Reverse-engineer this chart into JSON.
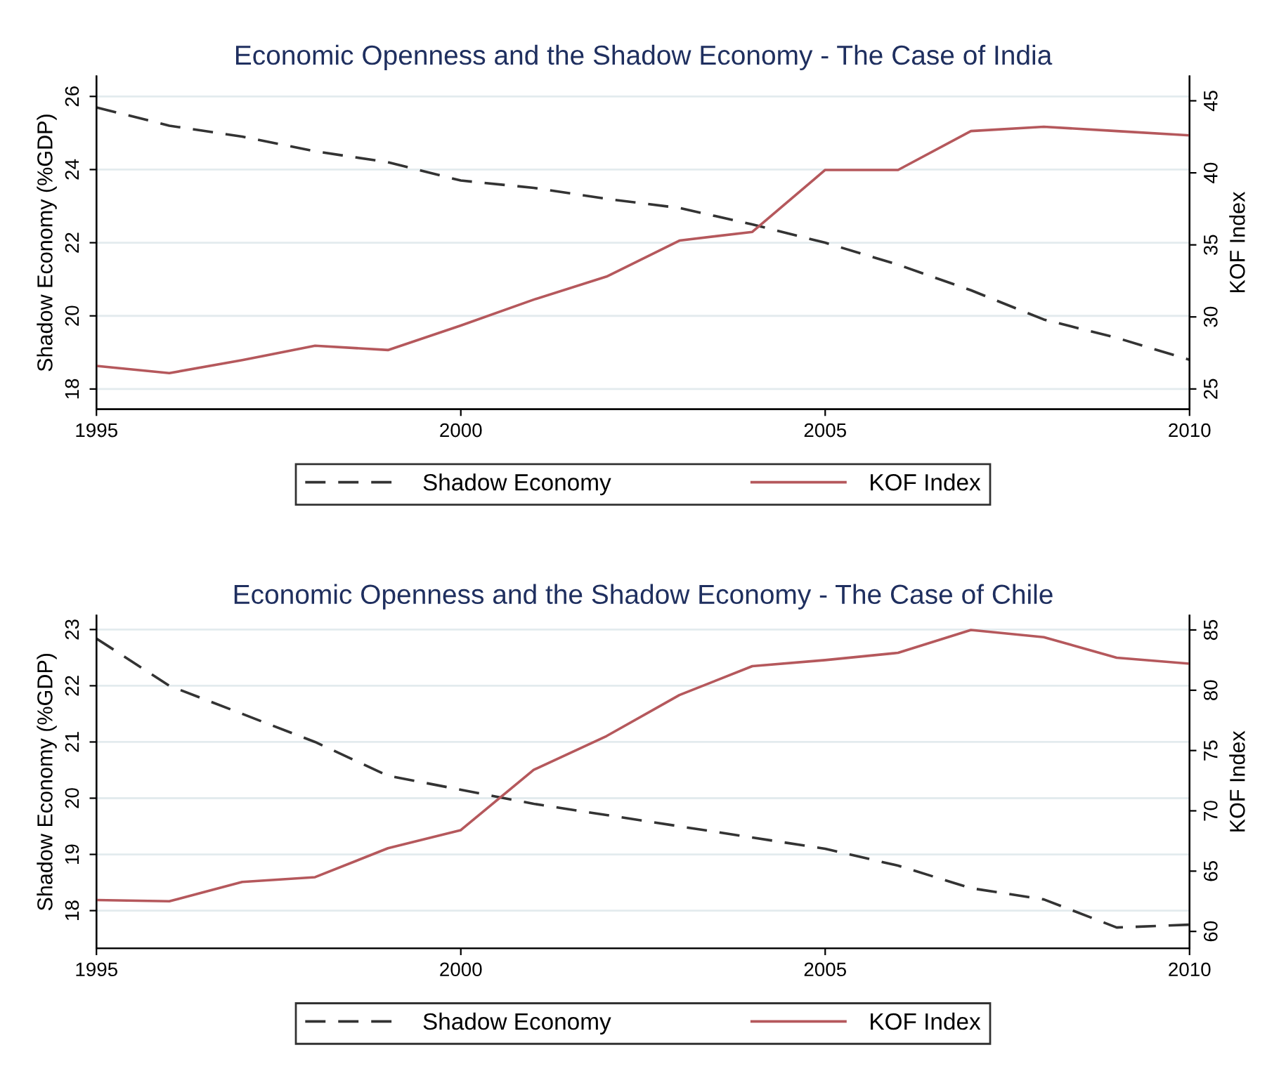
{
  "chart_data": [
    {
      "type": "line",
      "title": "Economic Openness and the Shadow Economy - The Case of India",
      "ylabel": "Shadow Economy (%GDP)",
      "y2label": "KOF Index",
      "x": [
        1995,
        1996,
        1997,
        1998,
        1999,
        2000,
        2001,
        2002,
        2003,
        2004,
        2005,
        2006,
        2007,
        2008,
        2009,
        2010
      ],
      "xlim": [
        1995,
        2010
      ],
      "xticks": [
        1995,
        2000,
        2005,
        2010
      ],
      "ylim": [
        17.45,
        26.55
      ],
      "yticks": [
        18,
        20,
        22,
        24,
        26
      ],
      "y2lim": [
        23.6,
        46.7
      ],
      "y2ticks": [
        25,
        30,
        35,
        40,
        45
      ],
      "series": [
        {
          "name": "Shadow Economy",
          "color": "#333333",
          "line_style": "dashed",
          "values": [
            25.7,
            25.2,
            24.9,
            24.5,
            24.2,
            23.7,
            23.5,
            23.2,
            22.95,
            22.5,
            22.0,
            21.4,
            20.7,
            19.9,
            19.4,
            18.8
          ]
        },
        {
          "name": "KOF Index",
          "color": "#b5585c",
          "line_style": "solid",
          "axis": "y2",
          "values": [
            26.6,
            26.1,
            27.0,
            28.0,
            27.7,
            29.4,
            31.2,
            32.8,
            35.3,
            35.9,
            40.2,
            40.2,
            42.9,
            43.2,
            42.9,
            42.6
          ]
        }
      ],
      "grid": "y",
      "legend": "bottom",
      "marker": "none"
    },
    {
      "type": "line",
      "title": "Economic Openness and the Shadow Economy - The Case of Chile",
      "ylabel": "Shadow Economy (%GDP)",
      "y2label": "KOF Index",
      "x": [
        1995,
        1996,
        1997,
        1998,
        1999,
        2000,
        2001,
        2002,
        2003,
        2004,
        2005,
        2006,
        2007,
        2008,
        2009,
        2010
      ],
      "xlim": [
        1995,
        2010
      ],
      "xticks": [
        1995,
        2000,
        2005,
        2010
      ],
      "ylim": [
        17.33,
        23.25
      ],
      "yticks": [
        18,
        19,
        20,
        21,
        22,
        23
      ],
      "y2lim": [
        58.6,
        86.2
      ],
      "y2ticks": [
        60,
        65,
        70,
        75,
        80,
        85
      ],
      "series": [
        {
          "name": "Shadow Economy",
          "color": "#333333",
          "line_style": "dashed",
          "values": [
            22.84,
            22.0,
            21.5,
            21.0,
            20.4,
            20.15,
            19.9,
            19.7,
            19.5,
            19.3,
            19.1,
            18.8,
            18.4,
            18.2,
            17.7,
            17.75
          ]
        },
        {
          "name": "KOF Index",
          "color": "#b5585c",
          "line_style": "solid",
          "axis": "y2",
          "values": [
            62.6,
            62.5,
            64.1,
            64.5,
            66.9,
            68.4,
            73.4,
            76.2,
            79.6,
            82.0,
            82.5,
            83.1,
            85.0,
            84.4,
            82.7,
            82.2
          ]
        }
      ],
      "grid": "y",
      "legend": "bottom",
      "marker": "none"
    }
  ]
}
